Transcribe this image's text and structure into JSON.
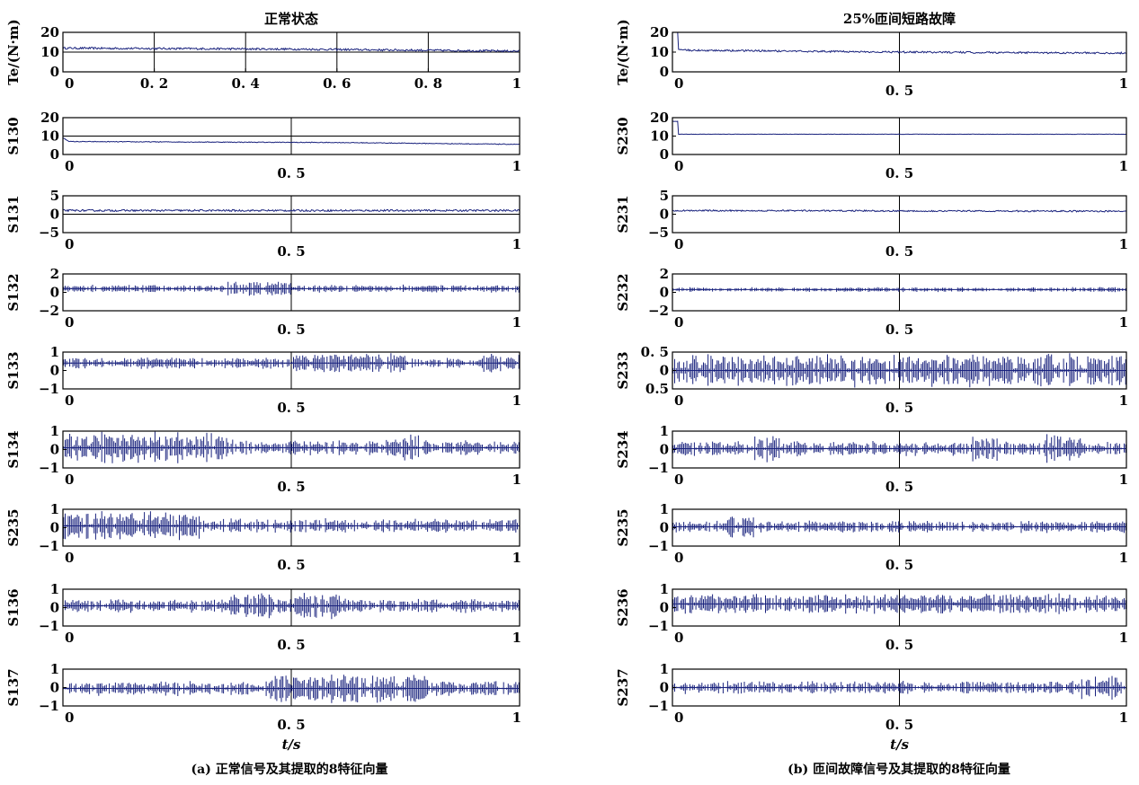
{
  "figure": {
    "caption_a": "(a) 正常信号及其提取的8特征向量",
    "caption_b": "(b) 匝间故障信号及其提取的8特征向量",
    "xlabel": "t/s",
    "line_color": "#1a237e"
  },
  "chart_data": [
    {
      "type": "line",
      "panel": "a1",
      "title": "正常状态",
      "ylabel": "Te/(N·m)",
      "xlim": [
        0,
        1
      ],
      "ylim": [
        0,
        20
      ],
      "yticks": [
        0,
        10,
        20
      ],
      "xticks": [
        0,
        0.2,
        0.4,
        0.6,
        0.8,
        1
      ],
      "xtick_labels": [
        "0",
        "0. 2",
        "0. 4",
        "0. 6",
        "0. 8",
        "1"
      ],
      "xgrid": [
        0.2,
        0.4,
        0.6,
        0.8
      ],
      "ygrid": [
        10
      ],
      "series": [
        {
          "kind": "steady",
          "values": [
            [
              0,
              12
            ],
            [
              0.5,
              11.5
            ],
            [
              1,
              10.5
            ]
          ],
          "noise": 1.0
        }
      ]
    },
    {
      "type": "line",
      "panel": "a2",
      "ylabel": "S130",
      "xlim": [
        0,
        1
      ],
      "ylim": [
        0,
        20
      ],
      "yticks": [
        0,
        10,
        20
      ],
      "xticks": [
        0,
        0.5,
        1
      ],
      "xtick_labels": [
        "0",
        "0. 5",
        "1"
      ],
      "xgrid": [
        0.5
      ],
      "ygrid": [
        10
      ],
      "series": [
        {
          "kind": "steady",
          "values": [
            [
              0,
              9
            ],
            [
              0.015,
              7
            ],
            [
              0.6,
              6.5
            ],
            [
              1,
              5.5
            ]
          ],
          "noise": 0.4
        }
      ]
    },
    {
      "type": "line",
      "panel": "a3",
      "ylabel": "S131",
      "xlim": [
        0,
        1
      ],
      "ylim": [
        -5,
        5
      ],
      "yticks": [
        -5,
        0,
        5
      ],
      "xticks": [
        0,
        0.5,
        1
      ],
      "xtick_labels": [
        "0",
        "0. 5",
        "1"
      ],
      "xgrid": [
        0.5
      ],
      "ygrid": [
        0
      ],
      "series": [
        {
          "kind": "steady",
          "values": [
            [
              0,
              1
            ],
            [
              1,
              1
            ]
          ],
          "noise": 0.5
        }
      ]
    },
    {
      "type": "line",
      "panel": "a4",
      "ylabel": "S132",
      "xlim": [
        0,
        1
      ],
      "ylim": [
        -2,
        2
      ],
      "yticks": [
        -2,
        0,
        2
      ],
      "xticks": [
        0,
        0.5,
        1
      ],
      "xtick_labels": [
        "0",
        "0. 5",
        "1"
      ],
      "xgrid": [
        0.5
      ],
      "series": [
        {
          "kind": "burst",
          "center": 0.4,
          "amplitude": 0.9,
          "bursts": [
            [
              0.36,
              0.5,
              1.0
            ]
          ]
        }
      ]
    },
    {
      "type": "line",
      "panel": "a5",
      "ylabel": "S133",
      "xlim": [
        0,
        1
      ],
      "ylim": [
        -1,
        1
      ],
      "yticks": [
        -1,
        0,
        1
      ],
      "xticks": [
        0,
        0.5,
        1
      ],
      "xtick_labels": [
        "0",
        "0. 5",
        "1"
      ],
      "xgrid": [
        0.5
      ],
      "series": [
        {
          "kind": "burst",
          "center": 0.4,
          "amplitude": 0.65,
          "bursts": [
            [
              0.5,
              0.75,
              0.85
            ],
            [
              0.92,
              1.0,
              0.9
            ]
          ]
        }
      ]
    },
    {
      "type": "line",
      "panel": "a6",
      "ylabel": "S134",
      "xlim": [
        0,
        1
      ],
      "ylim": [
        -1,
        1
      ],
      "yticks": [
        -1,
        0,
        1
      ],
      "xticks": [
        0,
        0.5,
        1
      ],
      "xtick_labels": [
        "0",
        "0. 5",
        "1"
      ],
      "xgrid": [
        0.5
      ],
      "series": [
        {
          "kind": "burst",
          "center": 0.1,
          "amplitude": 0.9,
          "bursts": [
            [
              0.0,
              0.36,
              1.0
            ],
            [
              0.72,
              0.78,
              0.9
            ]
          ]
        }
      ]
    },
    {
      "type": "line",
      "panel": "a7",
      "ylabel": "S235",
      "xlim": [
        0,
        1
      ],
      "ylim": [
        -1,
        1
      ],
      "yticks": [
        -1,
        0,
        1
      ],
      "xticks": [
        0,
        0.5,
        1
      ],
      "xtick_labels": [
        "0",
        "0. 5",
        "1"
      ],
      "xgrid": [
        0.5
      ],
      "series": [
        {
          "kind": "burst",
          "center": 0.1,
          "amplitude": 0.85,
          "bursts": [
            [
              0.0,
              0.3,
              1.0
            ]
          ]
        }
      ]
    },
    {
      "type": "line",
      "panel": "a8",
      "ylabel": "S136",
      "xlim": [
        0,
        1
      ],
      "ylim": [
        -1,
        1
      ],
      "yticks": [
        -1,
        0,
        1
      ],
      "xticks": [
        0,
        0.5,
        1
      ],
      "xtick_labels": [
        "0",
        "0. 5",
        "1"
      ],
      "xgrid": [
        0.5
      ],
      "series": [
        {
          "kind": "burst",
          "center": 0.1,
          "amplitude": 0.8,
          "bursts": [
            [
              0.36,
              0.62,
              1.0
            ]
          ]
        }
      ]
    },
    {
      "type": "line",
      "panel": "a9",
      "ylabel": "S137",
      "xlim": [
        0,
        1
      ],
      "ylim": [
        -1,
        1
      ],
      "yticks": [
        -1,
        0,
        1
      ],
      "xticks": [
        0,
        0.5,
        1
      ],
      "xtick_labels": [
        "0",
        "0. 5",
        "1"
      ],
      "xgrid": [
        0.5
      ],
      "series": [
        {
          "kind": "burst",
          "center": -0.05,
          "amplitude": 0.85,
          "bursts": [
            [
              0.45,
              0.8,
              1.0
            ]
          ]
        }
      ]
    },
    {
      "type": "line",
      "panel": "b1",
      "title": "25%匝间短路故障",
      "ylabel": "Te/(N·m)",
      "xlim": [
        0,
        1
      ],
      "ylim": [
        0,
        20
      ],
      "yticks": [
        0,
        10,
        20
      ],
      "xticks": [
        0,
        0.5,
        1
      ],
      "xtick_labels": [
        "0",
        "0. 5",
        "1"
      ],
      "xgrid": [
        0.5
      ],
      "series": [
        {
          "kind": "steady",
          "values": [
            [
              0,
              20
            ],
            [
              0.012,
              20
            ],
            [
              0.013,
              11
            ],
            [
              0.5,
              10
            ],
            [
              1,
              9.5
            ]
          ],
          "noise": 0.9
        }
      ]
    },
    {
      "type": "line",
      "panel": "b2",
      "ylabel": "S230",
      "xlim": [
        0,
        1
      ],
      "ylim": [
        0,
        20
      ],
      "yticks": [
        0,
        10,
        20
      ],
      "xticks": [
        0,
        0.5,
        1
      ],
      "xtick_labels": [
        "0",
        "0. 5",
        "1"
      ],
      "xgrid": [
        0.5
      ],
      "series": [
        {
          "kind": "steady",
          "values": [
            [
              0,
              18
            ],
            [
              0.012,
              18
            ],
            [
              0.013,
              11
            ],
            [
              1,
              11
            ]
          ],
          "noise": 0.15
        }
      ]
    },
    {
      "type": "line",
      "panel": "b3",
      "ylabel": "S231",
      "xlim": [
        0,
        1
      ],
      "ylim": [
        -5,
        5
      ],
      "yticks": [
        -5,
        0,
        5
      ],
      "xticks": [
        0,
        0.5,
        1
      ],
      "xtick_labels": [
        "0",
        "0. 5",
        "1"
      ],
      "xgrid": [
        0.5
      ],
      "series": [
        {
          "kind": "steady",
          "values": [
            [
              0,
              1
            ],
            [
              1,
              0.8
            ]
          ],
          "noise": 0.4
        }
      ]
    },
    {
      "type": "line",
      "panel": "b4",
      "ylabel": "S232",
      "xlim": [
        0,
        1
      ],
      "ylim": [
        -2,
        2
      ],
      "yticks": [
        -2,
        0,
        2
      ],
      "xticks": [
        0,
        0.5,
        1
      ],
      "xtick_labels": [
        "0",
        "0. 5",
        "1"
      ],
      "xgrid": [
        0.5
      ],
      "series": [
        {
          "kind": "burst",
          "center": 0.3,
          "amplitude": 0.45,
          "bursts": [
            [
              0.0,
              0.8,
              0.6
            ],
            [
              0.88,
              1.0,
              0.7
            ]
          ]
        }
      ]
    },
    {
      "type": "line",
      "panel": "b5",
      "ylabel": "S233",
      "xlim": [
        0,
        1
      ],
      "ylim": [
        -0.5,
        0.5
      ],
      "yticks": [
        -0.5,
        0,
        0.5
      ],
      "ytick_labels": [
        "0.5",
        "0",
        "0. 5"
      ],
      "xticks": [
        0,
        0.5,
        1
      ],
      "xtick_labels": [
        "0",
        "0. 5",
        "1"
      ],
      "xgrid": [
        0.5
      ],
      "series": [
        {
          "kind": "burst",
          "center": 0.0,
          "amplitude": 0.48,
          "bursts": [
            [
              0.0,
              1.0,
              1.0
            ]
          ]
        }
      ]
    },
    {
      "type": "line",
      "panel": "b6",
      "ylabel": "S234",
      "xlim": [
        0,
        1
      ],
      "ylim": [
        -1,
        1
      ],
      "yticks": [
        -1,
        0,
        1
      ],
      "xticks": [
        0,
        0.5,
        1
      ],
      "xtick_labels": [
        "0",
        "0. 5",
        "1"
      ],
      "xgrid": [
        0.5
      ],
      "series": [
        {
          "kind": "burst",
          "center": 0.05,
          "amplitude": 0.85,
          "bursts": [
            [
              0.18,
              0.24,
              1.0
            ],
            [
              0.66,
              0.72,
              1.0
            ],
            [
              0.82,
              0.9,
              1.0
            ]
          ]
        }
      ]
    },
    {
      "type": "line",
      "panel": "b7",
      "ylabel": "S235",
      "xlim": [
        0,
        1
      ],
      "ylim": [
        -1,
        1
      ],
      "yticks": [
        -1,
        0,
        1
      ],
      "xticks": [
        0,
        0.5,
        1
      ],
      "xtick_labels": [
        "0",
        "0. 5",
        "1"
      ],
      "xgrid": [
        0.5
      ],
      "series": [
        {
          "kind": "burst",
          "center": 0.05,
          "amplitude": 0.7,
          "bursts": [
            [
              0.12,
              0.18,
              1.0
            ]
          ]
        }
      ]
    },
    {
      "type": "line",
      "panel": "b8",
      "ylabel": "S236",
      "xlim": [
        0,
        1
      ],
      "ylim": [
        -1,
        1
      ],
      "yticks": [
        -1,
        0,
        1
      ],
      "xticks": [
        0,
        0.5,
        1
      ],
      "xtick_labels": [
        "0",
        "0. 5",
        "1"
      ],
      "xgrid": [
        0.5
      ],
      "series": [
        {
          "kind": "burst",
          "center": 0.2,
          "amplitude": 0.65,
          "bursts": [
            [
              0.0,
              1.0,
              0.9
            ]
          ]
        }
      ]
    },
    {
      "type": "line",
      "panel": "b9",
      "ylabel": "S237",
      "xlim": [
        0,
        1
      ],
      "ylim": [
        -1,
        1
      ],
      "yticks": [
        -1,
        0,
        1
      ],
      "xticks": [
        0,
        0.5,
        1
      ],
      "xtick_labels": [
        "0",
        "0. 5",
        "1"
      ],
      "xgrid": [
        0.5
      ],
      "series": [
        {
          "kind": "burst",
          "center": 0.0,
          "amplitude": 0.75,
          "bursts": [
            [
              0.9,
              0.98,
              1.0
            ]
          ]
        }
      ]
    }
  ]
}
